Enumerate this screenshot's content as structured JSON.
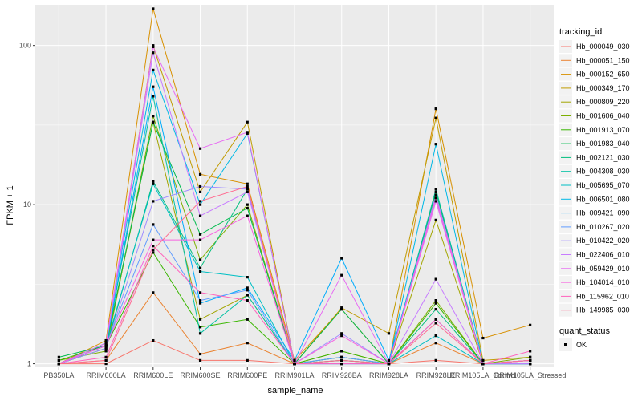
{
  "chart_data": {
    "type": "line",
    "title": "",
    "xlabel": "sample_name",
    "ylabel": "FPKM + 1",
    "y_scale": "log10",
    "ylim": [
      0.95,
      180
    ],
    "y_ticks": [
      1,
      10,
      100
    ],
    "y_tick_labels": [
      "1",
      "10",
      "100"
    ],
    "grid": true,
    "legend_position": "right",
    "categories": [
      "PB350LA",
      "RRIM600LA",
      "RRIM600LE",
      "RRIM600SE",
      "RRIM600PE",
      "RRIM901LA",
      "RRIM928BA",
      "RRIM928LA",
      "RRIM928LE",
      "RRIM105LA_Control",
      "RRIM105LA_Stressed"
    ],
    "legend_title": "tracking_id",
    "series": [
      {
        "name": "Hb_000049_030",
        "color": "#F8766D",
        "values": [
          1.0,
          1.0,
          1.4,
          1.05,
          1.05,
          1.0,
          1.05,
          1.0,
          1.05,
          1.0,
          1.0
        ]
      },
      {
        "name": "Hb_000051_150",
        "color": "#EA8331",
        "values": [
          1.0,
          1.05,
          2.8,
          1.15,
          1.35,
          1.0,
          1.05,
          1.0,
          1.35,
          1.0,
          1.05
        ]
      },
      {
        "name": "Hb_000152_650",
        "color": "#D89000",
        "values": [
          1.0,
          1.4,
          170.0,
          15.5,
          13.5,
          1.05,
          2.2,
          1.0,
          40.0,
          1.45,
          1.75
        ]
      },
      {
        "name": "Hb_000349_170",
        "color": "#C09B00",
        "values": [
          1.0,
          1.3,
          100.0,
          12.0,
          33.0,
          1.0,
          2.25,
          1.55,
          35.0,
          1.05,
          1.1
        ]
      },
      {
        "name": "Hb_000809_220",
        "color": "#A3A500",
        "values": [
          1.0,
          1.25,
          33.0,
          1.9,
          2.7,
          1.0,
          1.2,
          1.0,
          8.0,
          1.0,
          1.05
        ]
      },
      {
        "name": "Hb_001606_040",
        "color": "#7CAE00",
        "values": [
          1.05,
          1.2,
          36.0,
          4.5,
          10.0,
          1.0,
          1.1,
          1.0,
          2.5,
          1.0,
          1.1
        ]
      },
      {
        "name": "Hb_001913_070",
        "color": "#39B600",
        "values": [
          1.05,
          1.3,
          5.0,
          1.7,
          1.9,
          1.0,
          1.2,
          1.0,
          2.4,
          1.0,
          1.0
        ]
      },
      {
        "name": "Hb_001983_040",
        "color": "#00BB4E",
        "values": [
          1.1,
          1.3,
          33.0,
          6.5,
          9.5,
          1.0,
          2.2,
          1.0,
          12.0,
          1.0,
          1.05
        ]
      },
      {
        "name": "Hb_002121_030",
        "color": "#00BF7D",
        "values": [
          1.0,
          1.25,
          14.0,
          4.0,
          12.5,
          1.0,
          1.1,
          1.0,
          2.2,
          1.0,
          1.0
        ]
      },
      {
        "name": "Hb_004308_030",
        "color": "#00C1A3",
        "values": [
          1.0,
          1.3,
          48.0,
          1.55,
          2.7,
          1.0,
          1.05,
          1.0,
          12.5,
          1.0,
          1.05
        ]
      },
      {
        "name": "Hb_005695_070",
        "color": "#00BFC4",
        "values": [
          1.0,
          1.3,
          13.5,
          3.8,
          3.5,
          1.0,
          1.0,
          1.0,
          1.5,
          1.0,
          1.0
        ]
      },
      {
        "name": "Hb_006501_080",
        "color": "#00B8E5",
        "values": [
          1.0,
          1.35,
          70.0,
          10.0,
          28.0,
          1.0,
          1.0,
          1.0,
          24.0,
          1.0,
          1.05
        ]
      },
      {
        "name": "Hb_009421_090",
        "color": "#00ACFC",
        "values": [
          1.0,
          1.3,
          55.0,
          2.4,
          3.0,
          1.05,
          4.6,
          1.05,
          11.0,
          1.0,
          1.0
        ]
      },
      {
        "name": "Hb_010267_020",
        "color": "#619CFF",
        "values": [
          1.0,
          1.3,
          7.5,
          2.5,
          2.9,
          1.0,
          1.1,
          1.0,
          1.9,
          1.0,
          1.0
        ]
      },
      {
        "name": "Hb_010422_020",
        "color": "#9F8CFF",
        "values": [
          1.0,
          1.25,
          10.5,
          13.0,
          12.5,
          1.0,
          1.55,
          1.0,
          11.5,
          1.0,
          1.05
        ]
      },
      {
        "name": "Hb_022406_010",
        "color": "#C77CFF",
        "values": [
          1.0,
          1.3,
          90.0,
          8.5,
          12.0,
          1.0,
          1.0,
          1.0,
          3.4,
          1.0,
          1.0
        ]
      },
      {
        "name": "Hb_059429_010",
        "color": "#E76BF3",
        "values": [
          1.0,
          1.35,
          98.0,
          22.5,
          28.5,
          1.0,
          3.6,
          1.0,
          10.5,
          1.0,
          1.05
        ]
      },
      {
        "name": "Hb_104014_010",
        "color": "#F763E0",
        "values": [
          1.0,
          1.3,
          6.0,
          6.0,
          8.5,
          1.0,
          1.5,
          1.0,
          11.0,
          1.0,
          1.05
        ]
      },
      {
        "name": "Hb_115962_010",
        "color": "#FF62BC",
        "values": [
          1.0,
          1.1,
          5.5,
          2.8,
          2.5,
          1.0,
          1.0,
          1.0,
          1.9,
          1.0,
          1.2
        ]
      },
      {
        "name": "Hb_149985_030",
        "color": "#FF6C91",
        "values": [
          1.0,
          1.05,
          5.2,
          10.5,
          13.0,
          1.0,
          1.05,
          1.0,
          1.8,
          1.0,
          1.05
        ]
      }
    ],
    "shape_legend": {
      "title": "quant_status",
      "items": [
        {
          "label": "OK",
          "marker": "square"
        }
      ]
    },
    "panel_background": "#EBEBEB",
    "gridline_color": "#FFFFFF"
  }
}
